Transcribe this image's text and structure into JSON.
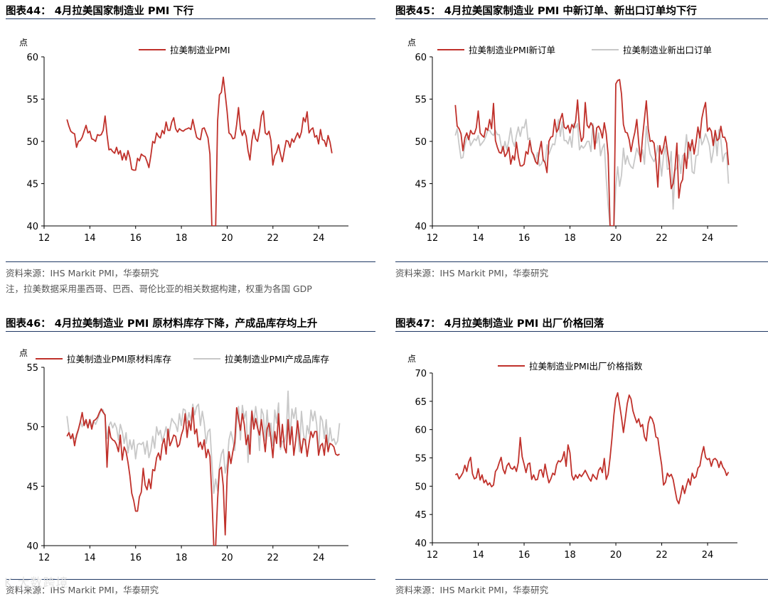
{
  "panels": [
    {
      "title": "图表44： 4月拉美国家制造业 PMI 下行",
      "source": "资料来源：IHS Markit PMI，华泰研究",
      "note": "注，拉美数据采用墨西哥、巴西、哥伦比亚的相关数据构建，权重为各国 GDP"
    },
    {
      "title": "图表45： 4月拉美国家制造业 PMI 中新订单、新出口订单均下行",
      "source": "资料来源：IHS Markit PMI，华泰研究"
    },
    {
      "title": "图表46： 4月拉美制造业 PMI 原材料库存下降，产成品库存均上升",
      "source": "资料来源：IHS Markit PMI，华泰研究"
    },
    {
      "title": "图表47： 4月拉美制造业 PMI 出厂价格回落",
      "source": "资料来源：IHS Markit PMI，华泰研究"
    }
  ],
  "watermark": "K 大数跨境",
  "chart_data": [
    {
      "type": "line",
      "ylabel": "点",
      "ylim": [
        40,
        60
      ],
      "yticks": [
        "40",
        "45",
        "50",
        "55",
        "60"
      ],
      "xlim": [
        12,
        25.3
      ],
      "xticks": [
        "12",
        "14",
        "16",
        "18",
        "20",
        "22",
        "24"
      ],
      "legend_position": "top-center",
      "grid": false,
      "series": [
        {
          "name": "拉美制造业PMI",
          "color": "#c0312b",
          "x_start": 13.0,
          "x_step": 0.0833,
          "values": [
            52.6,
            51.8,
            51.2,
            51.0,
            50.9,
            49.3,
            50.0,
            50.1,
            50.5,
            51.2,
            51.9,
            51.0,
            51.2,
            50.3,
            50.2,
            50.0,
            50.8,
            50.7,
            50.8,
            51.3,
            53.0,
            50.8,
            49.0,
            49.1,
            48.8,
            48.6,
            49.3,
            48.5,
            48.9,
            47.8,
            48.6,
            47.8,
            48.9,
            48.1,
            46.7,
            46.6,
            46.6,
            48.0,
            47.7,
            48.5,
            48.3,
            48.2,
            47.6,
            46.9,
            48.3,
            50.0,
            49.8,
            51.0,
            50.6,
            50.4,
            51.3,
            50.9,
            52.3,
            51.3,
            51.3,
            52.3,
            52.8,
            51.5,
            51.1,
            51.5,
            51.3,
            51.2,
            51.4,
            51.5,
            51.6,
            51.4,
            52.6,
            51.5,
            50.5,
            50.3,
            50.2,
            51.5,
            51.6,
            51.0,
            50.4,
            48.5,
            40.0,
            40.0,
            40.0,
            52.4,
            55.5,
            55.8,
            57.6,
            55.6,
            53.5,
            51.0,
            50.8,
            50.3,
            50.4,
            52.0,
            54.0,
            51.5,
            50.7,
            51.3,
            50.6,
            48.9,
            47.8,
            50.1,
            51.4,
            50.3,
            50.0,
            51.2,
            53.0,
            53.6,
            51.0,
            50.8,
            51.2,
            50.1,
            47.2,
            48.3,
            48.7,
            49.6,
            48.5,
            47.6,
            48.9,
            50.1,
            50.0,
            49.3,
            50.3,
            49.9,
            50.5,
            51.0,
            50.4,
            51.1,
            52.8,
            52.3,
            53.5,
            51.0,
            51.4,
            51.6,
            50.5,
            50.7,
            49.7,
            51.4,
            50.2,
            50.1,
            49.4,
            50.7,
            49.9,
            48.6
          ]
        }
      ]
    },
    {
      "type": "line",
      "ylabel": "点",
      "ylim": [
        40,
        60
      ],
      "yticks": [
        "40",
        "45",
        "50",
        "55",
        "60"
      ],
      "xlim": [
        12,
        25.3
      ],
      "xticks": [
        "12",
        "14",
        "16",
        "18",
        "20",
        "22",
        "24"
      ],
      "legend_position": "top",
      "grid": false,
      "series": [
        {
          "name": "拉美制造业PMI新订单",
          "color": "#c0312b",
          "x_start": 13.0,
          "x_step": 0.0833,
          "values": [
            54.3,
            51.8,
            51.5,
            50.9,
            48.9,
            50.4,
            51.0,
            50.2,
            51.3,
            50.9,
            50.9,
            51.6,
            53.6,
            51.0,
            50.7,
            50.5,
            51.6,
            51.3,
            52.6,
            51.5,
            54.5,
            50.1,
            49.3,
            48.7,
            48.6,
            49.4,
            48.2,
            48.6,
            49.3,
            47.3,
            48.3,
            47.8,
            49.9,
            48.2,
            47.1,
            47.1,
            47.3,
            48.8,
            48.5,
            50.1,
            48.8,
            48.4,
            47.6,
            47.3,
            48.9,
            50.0,
            47.8,
            47.5,
            46.3,
            50.0,
            50.5,
            50.6,
            52.6,
            51.1,
            51.5,
            52.6,
            53.3,
            51.7,
            51.5,
            51.9,
            51.0,
            52.0,
            51.6,
            52.4,
            54.9,
            51.6,
            50.0,
            50.5,
            54.6,
            51.9,
            51.6,
            52.2,
            51.8,
            49.1,
            51.6,
            51.8,
            51.3,
            50.4,
            52.2,
            50.9,
            48.4,
            40.0,
            40.0,
            40.0,
            56.8,
            57.2,
            57.3,
            55.6,
            52.0,
            51.1,
            51.0,
            50.2,
            48.8,
            50.1,
            51.1,
            52.6,
            49.8,
            47.6,
            50.5,
            52.7,
            54.8,
            51.5,
            50.0,
            50.1,
            49.8,
            47.8,
            44.6,
            49.5,
            48.5,
            49.3,
            50.6,
            48.9,
            47.2,
            44.4,
            45.0,
            46.8,
            49.8,
            43.3,
            45.0,
            45.5,
            48.6,
            46.8,
            49.9,
            48.9,
            50.2,
            48.5,
            49.9,
            51.7,
            50.4,
            52.7,
            53.8,
            54.6,
            51.2,
            51.6,
            51.2,
            49.5,
            51.3,
            50.1,
            50.3,
            51.8,
            50.5,
            50.5,
            49.8,
            47.2
          ]
        },
        {
          "name": "拉美制造业新出口订单",
          "color": "#c8c8c8",
          "x_start": 13.0,
          "x_step": 0.0833,
          "values": [
            50.7,
            51.5,
            49.6,
            48.0,
            48.1,
            49.5,
            50.4,
            50.7,
            49.5,
            49.9,
            50.3,
            50.1,
            50.7,
            49.5,
            49.8,
            50.1,
            50.6,
            51.3,
            51.3,
            50.9,
            50.7,
            51.3,
            50.8,
            50.8,
            49.5,
            48.8,
            50.0,
            49.0,
            50.1,
            51.6,
            50.0,
            49.4,
            50.7,
            51.7,
            50.6,
            51.7,
            51.6,
            52.6,
            50.2,
            50.4,
            48.8,
            48.2,
            47.6,
            48.7,
            47.1,
            47.3,
            47.9,
            47.4,
            49.6,
            48.5,
            49.1,
            49.7,
            49.6,
            51.0,
            52.6,
            50.6,
            52.3,
            50.1,
            50.1,
            49.7,
            50.6,
            49.3,
            52.1,
            51.6,
            52.1,
            49.0,
            49.5,
            49.2,
            49.5,
            50.0,
            50.0,
            48.8,
            52.1,
            50.4,
            49.8,
            51.0,
            48.3,
            49.2,
            49.7,
            45.6,
            42.4,
            40.0,
            40.0,
            40.0,
            44.7,
            47.0,
            44.7,
            46.0,
            49.2,
            47.3,
            48.3,
            47.4,
            47.0,
            46.8,
            48.0,
            49.2,
            48.5,
            48.1,
            49.0,
            47.3,
            51.8,
            49.8,
            48.5,
            48.0,
            47.6,
            48.2,
            49.5,
            48.1,
            45.9,
            48.3,
            49.4,
            46.7,
            46.8,
            48.8,
            42.0,
            46.5,
            46.9,
            48.4,
            46.2,
            48.3,
            48.5,
            50.8,
            48.0,
            49.7,
            46.4,
            46.2,
            48.3,
            48.4,
            51.2,
            49.6,
            50.1,
            50.9,
            50.3,
            49.5,
            47.5,
            48.8,
            50.8,
            48.3,
            51.4,
            50.2,
            47.6,
            48.5,
            48.7,
            45.0
          ]
        }
      ]
    },
    {
      "type": "line",
      "ylabel": "点",
      "ylim": [
        40,
        55
      ],
      "yticks": [
        "40",
        "45",
        "50",
        "55"
      ],
      "xlim": [
        12,
        25.3
      ],
      "xticks": [
        "12",
        "14",
        "16",
        "18",
        "20",
        "22",
        "24"
      ],
      "legend_position": "top",
      "grid": false,
      "series": [
        {
          "name": "拉美制造业PMI原材料库存",
          "color": "#c0312b",
          "x_start": 13.0,
          "x_step": 0.0833,
          "values": [
            49.2,
            49.5,
            49.0,
            49.4,
            48.4,
            49.3,
            49.8,
            50.4,
            51.2,
            50.1,
            50.6,
            49.9,
            50.6,
            49.8,
            50.5,
            50.6,
            50.8,
            51.2,
            51.5,
            51.2,
            51.0,
            46.6,
            50.0,
            49.1,
            48.9,
            48.8,
            48.5,
            47.9,
            49.3,
            47.2,
            48.3,
            47.9,
            47.0,
            45.9,
            44.4,
            43.8,
            42.9,
            42.9,
            44.1,
            44.5,
            46.5,
            45.1,
            44.7,
            45.6,
            44.8,
            46.4,
            46.3,
            47.4,
            47.8,
            47.2,
            48.5,
            49.0,
            47.7,
            49.8,
            48.4,
            48.8,
            49.3,
            49.2,
            48.3,
            48.5,
            49.3,
            49.8,
            51.1,
            49.1,
            50.5,
            49.7,
            51.6,
            49.4,
            49.8,
            48.3,
            48.7,
            48.1,
            48.9,
            47.4,
            48.1,
            47.5,
            44.2,
            40.0,
            40.0,
            43.9,
            46.4,
            46.6,
            45.0,
            40.9,
            45.8,
            47.9,
            46.9,
            47.9,
            48.7,
            51.6,
            50.7,
            49.7,
            51.1,
            50.2,
            48.5,
            49.3,
            47.7,
            51.3,
            49.8,
            50.7,
            49.9,
            49.3,
            50.6,
            49.3,
            47.9,
            49.8,
            50.3,
            49.0,
            47.4,
            49.6,
            48.6,
            51.1,
            48.3,
            50.2,
            48.3,
            47.8,
            50.6,
            48.5,
            50.0,
            47.6,
            48.9,
            50.5,
            49.0,
            47.8,
            49.0,
            48.9,
            47.5,
            48.6,
            49.6,
            49.1,
            49.6,
            49.6,
            47.6,
            48.4,
            48.6,
            47.6,
            49.3,
            47.9,
            48.6,
            48.5,
            48.3,
            47.7,
            47.6,
            47.7
          ]
        },
        {
          "name": "拉美制造业PMI产成品库存",
          "color": "#c8c8c8",
          "x_start": 13.0,
          "x_step": 0.0833,
          "values": [
            50.9,
            49.6,
            49.0,
            49.1,
            49.0,
            49.1,
            49.7,
            50.5,
            50.0,
            50.5,
            50.3,
            49.9,
            50.6,
            50.1,
            50.5,
            50.2,
            50.6,
            51.0,
            51.5,
            51.4,
            50.8,
            49.0,
            50.1,
            50.4,
            49.9,
            50.3,
            49.9,
            48.9,
            50.2,
            49.6,
            48.6,
            49.5,
            47.8,
            48.9,
            48.1,
            48.9,
            47.3,
            48.5,
            48.6,
            48.5,
            48.7,
            47.7,
            48.8,
            47.4,
            48.0,
            49.2,
            48.2,
            50.0,
            49.3,
            49.7,
            48.8,
            49.3,
            50.0,
            48.9,
            49.8,
            50.7,
            50.4,
            50.2,
            49.6,
            51.1,
            50.1,
            51.5,
            51.4,
            50.3,
            51.2,
            50.5,
            51.9,
            51.0,
            51.7,
            51.9,
            50.1,
            51.3,
            50.3,
            48.6,
            49.6,
            49.8,
            47.1,
            44.4,
            45.6,
            44.6,
            46.6,
            47.7,
            48.1,
            46.1,
            46.9,
            48.9,
            49.6,
            48.9,
            48.0,
            50.3,
            51.7,
            48.9,
            51.8,
            50.7,
            51.3,
            47.0,
            50.0,
            51.4,
            50.3,
            51.7,
            50.5,
            48.0,
            51.5,
            51.0,
            48.8,
            51.4,
            49.2,
            50.3,
            48.4,
            51.4,
            50.3,
            52.0,
            48.1,
            48.8,
            48.7,
            49.4,
            53.0,
            48.6,
            51.5,
            50.7,
            51.6,
            49.5,
            47.9,
            51.3,
            49.5,
            48.5,
            50.1,
            49.4,
            51.4,
            50.5,
            51.3,
            50.2,
            47.8,
            50.9,
            50.5,
            49.0,
            50.6,
            48.3,
            49.9,
            48.8,
            49.0,
            48.5,
            48.8,
            50.3
          ]
        }
      ]
    },
    {
      "type": "line",
      "ylabel": "点",
      "ylim": [
        40,
        70
      ],
      "yticks": [
        "40",
        "45",
        "50",
        "55",
        "60",
        "65",
        "70"
      ],
      "xlim": [
        12,
        25.3
      ],
      "xticks": [
        "12",
        "14",
        "16",
        "18",
        "20",
        "22",
        "24"
      ],
      "legend_position": "top-center",
      "grid": false,
      "series": [
        {
          "name": "拉美制造业PMI出厂价格指数",
          "color": "#c0312b",
          "x_start": 13.0,
          "x_step": 0.0833,
          "values": [
            52.0,
            52.2,
            51.3,
            51.8,
            52.4,
            53.7,
            52.6,
            54.3,
            55.1,
            52.2,
            51.3,
            51.5,
            53.1,
            51.1,
            52.0,
            50.6,
            51.1,
            50.2,
            50.6,
            49.9,
            50.2,
            52.6,
            53.1,
            54.2,
            55.1,
            53.0,
            52.2,
            53.6,
            54.1,
            53.2,
            53.0,
            53.5,
            52.6,
            54.2,
            58.6,
            55.2,
            53.9,
            52.4,
            53.9,
            54.1,
            51.2,
            52.0,
            51.1,
            51.2,
            52.8,
            52.9,
            51.6,
            53.9,
            52.1,
            50.6,
            51.3,
            52.3,
            52.0,
            53.8,
            54.5,
            54.3,
            54.8,
            56.1,
            53.5,
            57.3,
            55.9,
            51.9,
            51.1,
            52.0,
            51.4,
            52.1,
            51.7,
            52.2,
            52.8,
            52.1,
            51.4,
            50.9,
            52.1,
            51.6,
            51.2,
            52.8,
            53.3,
            52.4,
            54.9,
            51.2,
            52.1,
            55.0,
            58.5,
            62.6,
            65.5,
            66.5,
            64.4,
            62.1,
            59.5,
            62.0,
            64.6,
            66.1,
            65.4,
            63.3,
            62.2,
            61.2,
            61.9,
            60.5,
            60.9,
            58.7,
            58.0,
            61.1,
            62.3,
            61.9,
            60.9,
            58.7,
            58.5,
            55.9,
            53.8,
            50.2,
            50.7,
            52.3,
            51.7,
            52.1,
            51.2,
            49.4,
            47.6,
            46.9,
            48.4,
            50.1,
            48.7,
            50.1,
            51.3,
            50.2,
            52.3,
            51.4,
            51.7,
            53.2,
            53.6,
            55.6,
            57.0,
            55.1,
            54.7,
            54.9,
            53.5,
            54.7,
            54.9,
            54.5,
            53.3,
            54.4,
            53.4,
            52.9,
            51.9,
            52.5
          ]
        }
      ]
    }
  ]
}
